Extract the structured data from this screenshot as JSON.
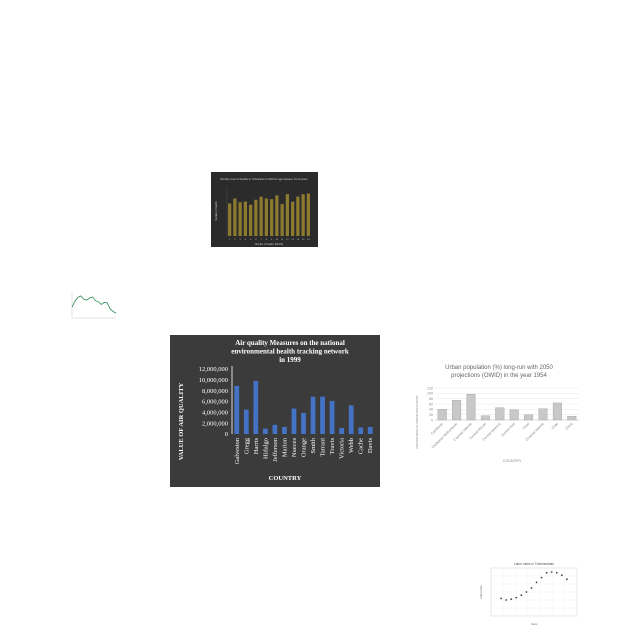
{
  "chart_data": [
    {
      "type": "bar",
      "title": "Monthly count of Deaths in Uzbekistan in 2019 for age between 15-19 years",
      "xlabel": "Number of Deaths Monthly",
      "ylabel": "Number of Deaths",
      "categories": [
        "1",
        "2",
        "3",
        "4",
        "5",
        "6",
        "7",
        "8",
        "9",
        "10",
        "11",
        "12",
        "13",
        "14",
        "15",
        "16"
      ],
      "values": [
        52,
        60,
        54,
        55,
        50,
        58,
        63,
        60,
        59,
        65,
        51,
        67,
        55,
        63,
        67,
        68
      ],
      "ylim": [
        0,
        80
      ],
      "colors": {
        "bar": "#8c7a2e",
        "background": "#2b2b2b",
        "text": "#cccccc"
      }
    },
    {
      "type": "line",
      "title": "",
      "xlabel": "",
      "ylabel": "",
      "x": [
        1,
        2,
        3,
        4,
        5,
        6,
        7,
        8,
        9,
        10,
        11,
        12,
        13,
        14,
        15,
        16
      ],
      "series": [
        {
          "values": [
            40,
            62,
            76,
            82,
            70,
            66,
            74,
            78,
            64,
            60,
            50,
            58,
            56,
            34,
            24,
            18
          ]
        }
      ],
      "ylim": [
        0,
        100
      ],
      "colors": {
        "line": "#2e8b57"
      }
    },
    {
      "type": "bar",
      "title": "Air quality Measures on the national environmental health tracking network in 1999",
      "title_lines": [
        "Air quality Measures on the national",
        "environmental health tracking network",
        "in 1999"
      ],
      "xlabel": "COUNTRY",
      "ylabel": "VALUE OF AIR QUALITY",
      "categories": [
        "Galveston",
        "Gregg",
        "Harris",
        "Hidalgo",
        "Jefferson",
        "Marion",
        "Nueces",
        "Orange",
        "Smith",
        "Tarrant",
        "Travis",
        "Victoria",
        "Webb",
        "Cache",
        "Davis"
      ],
      "values": [
        8900000,
        4500000,
        9800000,
        1000000,
        1700000,
        1300000,
        4700000,
        3900000,
        6900000,
        6900000,
        6100000,
        1100000,
        5300000,
        1200000,
        1300000
      ],
      "yticks": [
        "0",
        "2,000,000",
        "4,000,000",
        "6,000,000",
        "8,000,000",
        "10,000,000",
        "12,000,000"
      ],
      "ylim": [
        0,
        12000000
      ],
      "colors": {
        "bar": "#4472c4",
        "background": "#3b3b3b",
        "text": "#ffffff"
      }
    },
    {
      "type": "bar",
      "title": "Urban population (%) long-run with 2050 projections (OWID) in the year 1954",
      "title_lines": [
        "Urban population (%) long-run with 2050",
        "projections (OWID) in the year 1954"
      ],
      "xlabel": "COUNTRY",
      "ylabel": "PERCENTAGE OF URBAN POPULATION",
      "categories": [
        "Caribbean",
        "Caribbean Netherlands",
        "Cayman Islands",
        "Central African",
        "Central America",
        "Central Asia",
        "Chad",
        "Channel Islands",
        "Chile",
        "China"
      ],
      "values": [
        40,
        74,
        97,
        16,
        46,
        38,
        20,
        42,
        64,
        14
      ],
      "yticks": [
        "0",
        "20",
        "40",
        "60",
        "80",
        "100",
        "120"
      ],
      "ylim": [
        0,
        120
      ],
      "colors": {
        "bar": "#c8c8c8",
        "edge": "#8c8c8c",
        "text": "#888888"
      }
    },
    {
      "type": "scatter",
      "title": "Labor index in Turkmenistan",
      "xlabel": "Years",
      "ylabel": "Labor index",
      "x": [
        1990,
        1992,
        1994,
        1996,
        1998,
        2000,
        2002,
        2004,
        2006,
        2008,
        2010,
        2012,
        2014,
        2016
      ],
      "series": [
        {
          "values": [
            2.2,
            2.0,
            2.1,
            2.3,
            2.6,
            3.0,
            3.5,
            4.2,
            4.8,
            5.4,
            5.5,
            5.4,
            5.1,
            4.6
          ]
        }
      ],
      "ylim": [
        0,
        6
      ],
      "colors": {
        "point": "#444444"
      }
    }
  ]
}
